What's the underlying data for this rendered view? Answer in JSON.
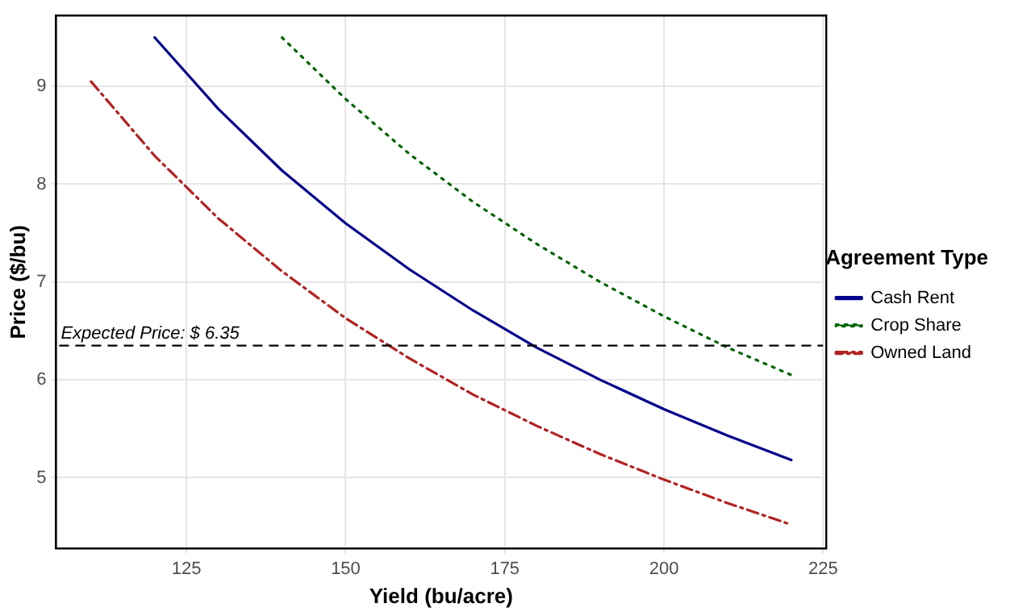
{
  "chart_data": {
    "type": "line",
    "xlabel": "Yield (bu/acre)",
    "ylabel": "Price ($/bu)",
    "legend_title": "Agreement Type",
    "legend": "right",
    "grid": true,
    "marker": "none",
    "xlim": [
      104.5,
      225.5
    ],
    "xticks": [
      125,
      150,
      175,
      200,
      225
    ],
    "ylim": [
      4.275,
      9.725
    ],
    "yticks": [
      5,
      6,
      7,
      8,
      9
    ],
    "series": [
      {
        "name": "Cash Rent",
        "color": "#00008b",
        "line_style": "solid",
        "x": [
          120,
          130,
          140,
          150,
          160,
          170,
          180,
          190,
          200,
          210,
          220
        ],
        "values": [
          9.5,
          8.77,
          8.14,
          7.6,
          7.13,
          6.71,
          6.33,
          6.0,
          5.7,
          5.43,
          5.18
        ]
      },
      {
        "name": "Crop Share",
        "color": "#006400",
        "line_style": "dotted",
        "x": [
          140,
          150,
          160,
          170,
          180,
          190,
          200,
          210,
          220
        ],
        "values": [
          9.5,
          8.87,
          8.31,
          7.82,
          7.39,
          7.0,
          6.65,
          6.33,
          6.05
        ]
      },
      {
        "name": "Owned Land",
        "color": "#b22222",
        "line_style": "dashed",
        "x": [
          110,
          120,
          130,
          140,
          150,
          160,
          170,
          180,
          190,
          200,
          210,
          220
        ],
        "values": [
          9.05,
          8.29,
          7.65,
          7.11,
          6.63,
          6.22,
          5.85,
          5.53,
          5.24,
          4.98,
          4.74,
          4.52
        ]
      }
    ],
    "ref_lines": [
      {
        "axis": "y",
        "value": 6.35,
        "label": "Expected Price: $ 6.35",
        "color": "#000000",
        "line_style": "dashed"
      }
    ]
  }
}
